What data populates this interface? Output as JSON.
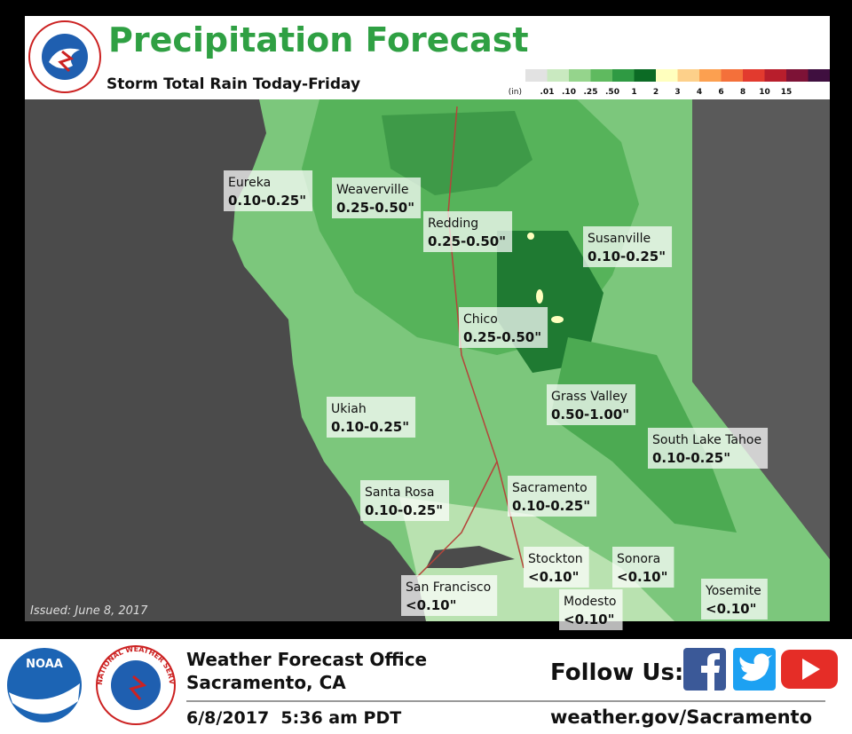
{
  "header": {
    "title": "Precipitation Forecast",
    "subtitle": "Storm Total Rain Today-Friday"
  },
  "legend": {
    "unit": "(in)",
    "labels": [
      ".01",
      ".10",
      ".25",
      ".50",
      "1",
      "2",
      "3",
      "4",
      "6",
      "8",
      "10",
      "15"
    ],
    "colors": [
      "#e2e2e2",
      "#c9e9c0",
      "#95d48c",
      "#5fba5f",
      "#2f9a43",
      "#0c6b25",
      "#ffffbe",
      "#fdd08a",
      "#fca050",
      "#f4703a",
      "#e23a2e",
      "#b81e2c",
      "#7d1236",
      "#3f0f3f"
    ]
  },
  "map": {
    "issued": "Issued: June 8, 2017",
    "locations": [
      {
        "name": "Eureka",
        "amount": "0.10-0.25\""
      },
      {
        "name": "Weaverville",
        "amount": "0.25-0.50\""
      },
      {
        "name": "Redding",
        "amount": "0.25-0.50\""
      },
      {
        "name": "Susanville",
        "amount": "0.10-0.25\""
      },
      {
        "name": "Chico",
        "amount": "0.25-0.50\""
      },
      {
        "name": "Grass Valley",
        "amount": "0.50-1.00\""
      },
      {
        "name": "Ukiah",
        "amount": "0.10-0.25\""
      },
      {
        "name": "South Lake Tahoe",
        "amount": "0.10-0.25\""
      },
      {
        "name": "Santa Rosa",
        "amount": "0.10-0.25\""
      },
      {
        "name": "Sacramento",
        "amount": "0.10-0.25\""
      },
      {
        "name": "Stockton",
        "amount": "<0.10\""
      },
      {
        "name": "Sonora",
        "amount": "<0.10\""
      },
      {
        "name": "San Francisco",
        "amount": "<0.10\""
      },
      {
        "name": "Modesto",
        "amount": "<0.10\""
      },
      {
        "name": "Yosemite",
        "amount": "<0.10\""
      }
    ]
  },
  "footer": {
    "noaa": "NOAA",
    "nws": "NATIONAL WEATHER SERVICE",
    "office": "Weather Forecast Office",
    "location": "Sacramento, CA",
    "issued": "6/8/2017  5:36 am PDT",
    "follow": "Follow Us:",
    "url": "weather.gov/Sacramento"
  }
}
